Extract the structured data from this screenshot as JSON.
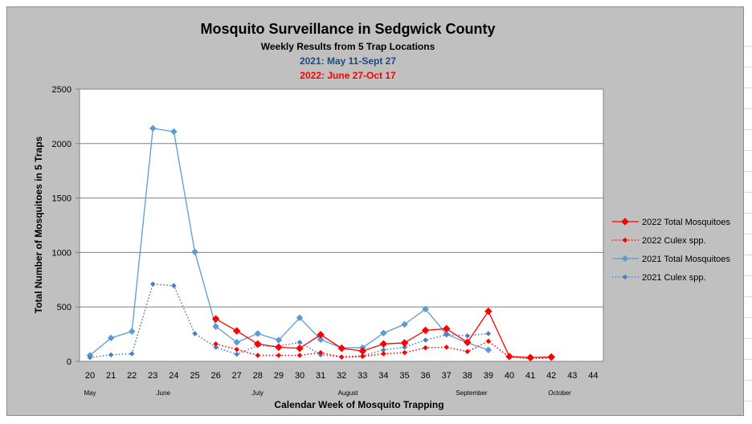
{
  "chart_data": {
    "type": "line",
    "title": "Mosquito Surveillance in Sedgwick County",
    "subtitle": "Weekly Results from 5 Trap Locations",
    "subtitle_2021": "2021: May 11-Sept 27",
    "subtitle_2022": "2022: June 27-Oct 17",
    "xlabel": "Calendar Week of Mosquito Trapping",
    "ylabel": "Total Number of Mosquitoes in 5 Traps",
    "x": [
      20,
      21,
      22,
      23,
      24,
      25,
      26,
      27,
      28,
      29,
      30,
      31,
      32,
      33,
      34,
      35,
      36,
      37,
      38,
      39,
      40,
      41,
      42,
      43,
      44
    ],
    "xlim": [
      20,
      44
    ],
    "ylim": [
      0,
      2500
    ],
    "yticks": [
      0,
      500,
      1000,
      1500,
      2000,
      2500
    ],
    "grid": "horizontal",
    "legend_position": "right",
    "month_labels": [
      {
        "week": 20,
        "label": "May"
      },
      {
        "week": 23.5,
        "label": "June"
      },
      {
        "week": 28,
        "label": "July"
      },
      {
        "week": 32.3,
        "label": "August"
      },
      {
        "week": 38.2,
        "label": "September"
      },
      {
        "week": 42.4,
        "label": "October"
      }
    ],
    "series": [
      {
        "name": "2022 Total Mosquitoes",
        "color": "#ff0000",
        "style": "solid",
        "marker_size": 4.5,
        "points": [
          [
            26,
            390
          ],
          [
            27,
            280
          ],
          [
            28,
            160
          ],
          [
            29,
            130
          ],
          [
            30,
            120
          ],
          [
            31,
            245
          ],
          [
            32,
            120
          ],
          [
            33,
            95
          ],
          [
            34,
            160
          ],
          [
            35,
            170
          ],
          [
            36,
            285
          ],
          [
            37,
            300
          ],
          [
            38,
            175
          ],
          [
            39,
            460
          ],
          [
            40,
            45
          ],
          [
            41,
            35
          ],
          [
            42,
            40
          ]
        ]
      },
      {
        "name": "2022 Culex spp.",
        "color": "#ff0000",
        "style": "dotted",
        "marker_size": 3,
        "points": [
          [
            26,
            160
          ],
          [
            27,
            110
          ],
          [
            28,
            55
          ],
          [
            29,
            55
          ],
          [
            30,
            55
          ],
          [
            31,
            80
          ],
          [
            32,
            40
          ],
          [
            33,
            45
          ],
          [
            34,
            70
          ],
          [
            35,
            80
          ],
          [
            36,
            125
          ],
          [
            37,
            130
          ],
          [
            38,
            90
          ],
          [
            39,
            185
          ],
          [
            40,
            40
          ],
          [
            41,
            25
          ],
          [
            42,
            30
          ]
        ]
      },
      {
        "name": "2021 Total Mosquitoes",
        "color": "#5b9bd5",
        "style": "solid",
        "marker_size": 4,
        "points": [
          [
            20,
            55
          ],
          [
            21,
            215
          ],
          [
            22,
            275
          ],
          [
            23,
            2140
          ],
          [
            24,
            2110
          ],
          [
            25,
            1005
          ],
          [
            26,
            320
          ],
          [
            27,
            175
          ],
          [
            28,
            255
          ],
          [
            29,
            195
          ],
          [
            30,
            400
          ],
          [
            31,
            200
          ],
          [
            32,
            125
          ],
          [
            33,
            125
          ],
          [
            34,
            260
          ],
          [
            35,
            340
          ],
          [
            36,
            480
          ],
          [
            37,
            250
          ],
          [
            38,
            170
          ],
          [
            39,
            105
          ]
        ]
      },
      {
        "name": "2021 Culex spp.",
        "color": "#4a7fc0",
        "style": "dotted",
        "marker_size": 3,
        "points": [
          [
            20,
            35
          ],
          [
            21,
            60
          ],
          [
            22,
            70
          ],
          [
            23,
            710
          ],
          [
            24,
            695
          ],
          [
            25,
            255
          ],
          [
            26,
            130
          ],
          [
            27,
            65
          ],
          [
            28,
            145
          ],
          [
            29,
            140
          ],
          [
            30,
            175
          ],
          [
            31,
            60
          ],
          [
            32,
            40
          ],
          [
            33,
            50
          ],
          [
            34,
            105
          ],
          [
            35,
            130
          ],
          [
            36,
            195
          ],
          [
            37,
            245
          ],
          [
            38,
            235
          ],
          [
            39,
            255
          ]
        ]
      }
    ]
  }
}
